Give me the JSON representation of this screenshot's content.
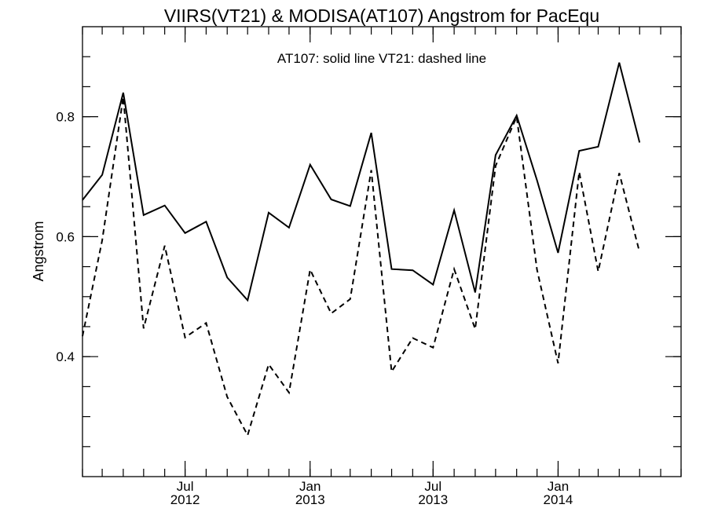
{
  "chart_data": {
    "type": "line",
    "title": "VIIRS(VT21) & MODISA(AT107)  Angstrom for PacEqu",
    "annotation": "AT107: solid line   VT21: dashed line",
    "xlabel": "",
    "ylabel": "Angstrom",
    "xlim": [
      "2012-02-01",
      "2014-07-01"
    ],
    "ylim": [
      0.2,
      0.95
    ],
    "y_ticks": [
      0.4,
      0.6,
      0.8
    ],
    "y_tick_labels": [
      "0.4",
      "0.6",
      "0.8"
    ],
    "y_minor_step": 0.05,
    "x_ticks": [
      {
        "date": "2012-07-01",
        "label_top": "Jul",
        "label_bottom": "2012"
      },
      {
        "date": "2013-01-01",
        "label_top": "Jan",
        "label_bottom": "2013"
      },
      {
        "date": "2013-07-01",
        "label_top": "Jul",
        "label_bottom": "2013"
      },
      {
        "date": "2014-01-01",
        "label_top": "Jan",
        "label_bottom": "2014"
      }
    ],
    "grid": false,
    "x": [
      "2012-02-01",
      "2012-03-01",
      "2012-04-01",
      "2012-05-01",
      "2012-06-01",
      "2012-07-01",
      "2012-08-01",
      "2012-09-01",
      "2012-10-01",
      "2012-11-01",
      "2012-12-01",
      "2013-01-01",
      "2013-02-01",
      "2013-03-01",
      "2013-04-01",
      "2013-05-01",
      "2013-06-01",
      "2013-07-01",
      "2013-08-01",
      "2013-09-01",
      "2013-10-01",
      "2013-11-01",
      "2013-12-01",
      "2014-01-01",
      "2014-02-01",
      "2014-03-01",
      "2014-04-01",
      "2014-05-01",
      "2014-06-01",
      "2014-07-01"
    ],
    "series": [
      {
        "name": "AT107",
        "style": "solid",
        "color": "#000000",
        "values": [
          0.661,
          0.703,
          0.84,
          0.636,
          0.652,
          0.606,
          0.625,
          0.532,
          0.494,
          0.64,
          0.615,
          0.72,
          0.662,
          0.651,
          0.773,
          0.546,
          0.544,
          0.52,
          0.644,
          0.507,
          0.736,
          0.802,
          0.694,
          0.573,
          0.743,
          0.75,
          0.89,
          0.757,
          null,
          null
        ]
      },
      {
        "name": "VT21",
        "style": "dashed",
        "color": "#000000",
        "values": [
          0.434,
          0.594,
          0.833,
          0.447,
          0.585,
          0.432,
          0.456,
          0.333,
          0.269,
          0.387,
          0.34,
          0.545,
          0.472,
          0.496,
          0.711,
          0.375,
          0.431,
          0.415,
          0.546,
          0.446,
          0.718,
          0.8,
          0.545,
          0.389,
          0.708,
          0.542,
          0.706,
          0.574,
          null,
          null
        ]
      }
    ]
  }
}
